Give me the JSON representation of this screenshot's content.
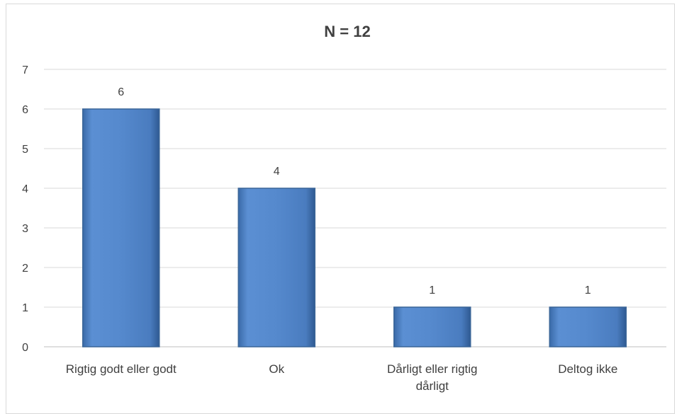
{
  "chart_data": {
    "type": "bar",
    "title": "N = 12",
    "categories": [
      [
        "Rigtig godt eller godt"
      ],
      [
        "Ok"
      ],
      [
        "Dårligt eller rigtig",
        "dårligt"
      ],
      [
        "Deltog ikke"
      ]
    ],
    "values": [
      6,
      4,
      1,
      1
    ],
    "data_labels": [
      "6",
      "4",
      "1",
      "1"
    ],
    "ylim": [
      0,
      7
    ],
    "yticks": [
      "0",
      "1",
      "2",
      "3",
      "4",
      "5",
      "6",
      "7"
    ],
    "grid": true,
    "legend": "none",
    "bar_color": "#4f81bd",
    "bar_edge_color": "#3a6597"
  }
}
